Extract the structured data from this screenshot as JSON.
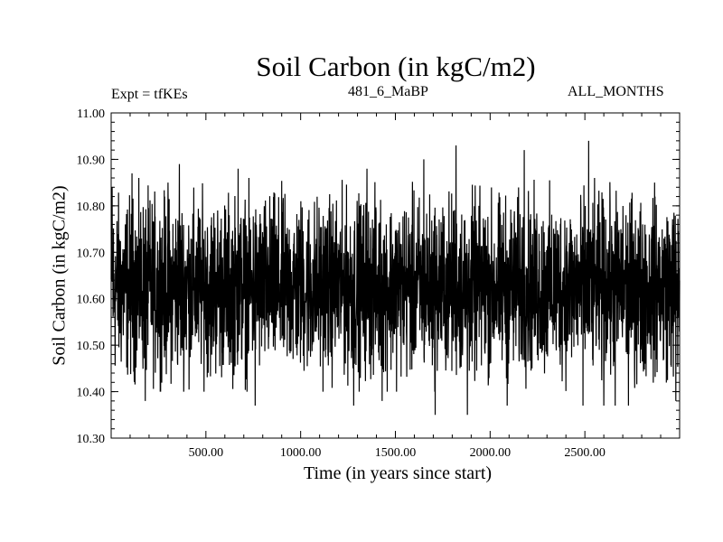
{
  "chart_data": {
    "type": "line",
    "title": "Soil Carbon (in kgC/m2)",
    "annotations": {
      "left": "Expt = tfKEs",
      "center": "481_6_MaBP",
      "right": "ALL_MONTHS"
    },
    "xlabel": "Time (in years since start)",
    "ylabel": "Soil Carbon (in kgC/m2)",
    "xlim": [
      0,
      3000
    ],
    "ylim": [
      10.3,
      11.0
    ],
    "xticks": [
      {
        "value": 500,
        "label": "500.00"
      },
      {
        "value": 1000,
        "label": "1000.00"
      },
      {
        "value": 1500,
        "label": "1500.00"
      },
      {
        "value": 2000,
        "label": "2000.00"
      },
      {
        "value": 2500,
        "label": "2500.00"
      }
    ],
    "yticks": [
      {
        "value": 10.3,
        "label": "10.30"
      },
      {
        "value": 10.4,
        "label": "10.40"
      },
      {
        "value": 10.5,
        "label": "10.50"
      },
      {
        "value": 10.6,
        "label": "10.60"
      },
      {
        "value": 10.7,
        "label": "10.70"
      },
      {
        "value": 10.8,
        "label": "10.80"
      },
      {
        "value": 10.9,
        "label": "10.90"
      },
      {
        "value": 11.0,
        "label": "11.00"
      }
    ],
    "series": [
      {
        "color": "#000000",
        "mean": 10.625,
        "band": [
          10.42,
          10.84
        ],
        "extremes": [
          {
            "x": 5,
            "y": 10.84
          },
          {
            "x": 110,
            "y": 10.87
          },
          {
            "x": 180,
            "y": 10.38
          },
          {
            "x": 300,
            "y": 10.85
          },
          {
            "x": 360,
            "y": 10.89
          },
          {
            "x": 670,
            "y": 10.88
          },
          {
            "x": 760,
            "y": 10.37
          },
          {
            "x": 1280,
            "y": 10.37
          },
          {
            "x": 1350,
            "y": 10.88
          },
          {
            "x": 1430,
            "y": 10.38
          },
          {
            "x": 1650,
            "y": 10.9
          },
          {
            "x": 1710,
            "y": 10.35
          },
          {
            "x": 1820,
            "y": 10.93
          },
          {
            "x": 1880,
            "y": 10.35
          },
          {
            "x": 2090,
            "y": 10.37
          },
          {
            "x": 2180,
            "y": 10.92
          },
          {
            "x": 2490,
            "y": 10.37
          },
          {
            "x": 2520,
            "y": 10.94
          },
          {
            "x": 2600,
            "y": 10.37
          },
          {
            "x": 2660,
            "y": 10.37
          },
          {
            "x": 2730,
            "y": 10.37
          },
          {
            "x": 2870,
            "y": 10.82
          },
          {
            "x": 2980,
            "y": 10.38
          }
        ]
      }
    ],
    "grid": false,
    "legend": "none"
  }
}
